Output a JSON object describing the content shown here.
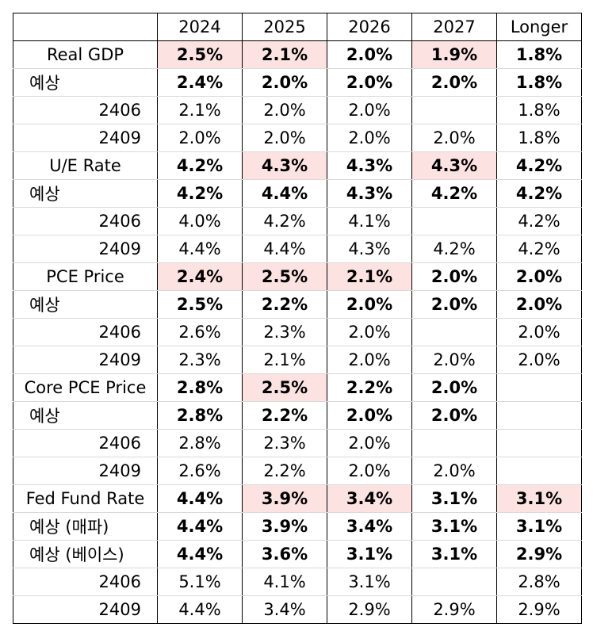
{
  "header": [
    "",
    "2024",
    "2025",
    "2026",
    "2027",
    "Longer"
  ],
  "groups": [
    {
      "rows": [
        {
          "label": "Real GDP",
          "kind": "main",
          "bold": true,
          "cells": [
            "2.5%",
            "2.1%",
            "2.0%",
            "1.9%",
            "1.8%"
          ],
          "highlight": [
            true,
            true,
            false,
            true,
            false
          ]
        },
        {
          "label": "예상",
          "kind": "sub",
          "bold": true,
          "cells": [
            "2.4%",
            "2.0%",
            "2.0%",
            "2.0%",
            "1.8%"
          ],
          "highlight": [
            false,
            false,
            false,
            false,
            false
          ]
        },
        {
          "label": "2406",
          "kind": "vint",
          "bold": false,
          "cells": [
            "2.1%",
            "2.0%",
            "2.0%",
            "",
            "1.8%"
          ],
          "highlight": [
            false,
            false,
            false,
            false,
            false
          ]
        },
        {
          "label": "2409",
          "kind": "vint",
          "bold": false,
          "cells": [
            "2.0%",
            "2.0%",
            "2.0%",
            "2.0%",
            "1.8%"
          ],
          "highlight": [
            false,
            false,
            false,
            false,
            false
          ]
        }
      ]
    },
    {
      "rows": [
        {
          "label": "U/E Rate",
          "kind": "main",
          "bold": true,
          "cells": [
            "4.2%",
            "4.3%",
            "4.3%",
            "4.3%",
            "4.2%"
          ],
          "highlight": [
            false,
            true,
            false,
            true,
            false
          ]
        },
        {
          "label": "예상",
          "kind": "sub",
          "bold": true,
          "cells": [
            "4.2%",
            "4.4%",
            "4.3%",
            "4.2%",
            "4.2%"
          ],
          "highlight": [
            false,
            false,
            false,
            false,
            false
          ]
        },
        {
          "label": "2406",
          "kind": "vint",
          "bold": false,
          "cells": [
            "4.0%",
            "4.2%",
            "4.1%",
            "",
            "4.2%"
          ],
          "highlight": [
            false,
            false,
            false,
            false,
            false
          ]
        },
        {
          "label": "2409",
          "kind": "vint",
          "bold": false,
          "cells": [
            "4.4%",
            "4.4%",
            "4.3%",
            "4.2%",
            "4.2%"
          ],
          "highlight": [
            false,
            false,
            false,
            false,
            false
          ]
        }
      ]
    },
    {
      "rows": [
        {
          "label": "PCE Price",
          "kind": "main",
          "bold": true,
          "cells": [
            "2.4%",
            "2.5%",
            "2.1%",
            "2.0%",
            "2.0%"
          ],
          "highlight": [
            true,
            true,
            true,
            false,
            false
          ]
        },
        {
          "label": "예상",
          "kind": "sub",
          "bold": true,
          "cells": [
            "2.5%",
            "2.2%",
            "2.0%",
            "2.0%",
            "2.0%"
          ],
          "highlight": [
            false,
            false,
            false,
            false,
            false
          ]
        },
        {
          "label": "2406",
          "kind": "vint",
          "bold": false,
          "cells": [
            "2.6%",
            "2.3%",
            "2.0%",
            "",
            "2.0%"
          ],
          "highlight": [
            false,
            false,
            false,
            false,
            false
          ]
        },
        {
          "label": "2409",
          "kind": "vint",
          "bold": false,
          "cells": [
            "2.3%",
            "2.1%",
            "2.0%",
            "2.0%",
            "2.0%"
          ],
          "highlight": [
            false,
            false,
            false,
            false,
            false
          ]
        }
      ]
    },
    {
      "rows": [
        {
          "label": "Core PCE Price",
          "kind": "main",
          "bold": true,
          "cells": [
            "2.8%",
            "2.5%",
            "2.2%",
            "2.0%",
            ""
          ],
          "highlight": [
            false,
            true,
            false,
            false,
            false
          ]
        },
        {
          "label": "예상",
          "kind": "sub",
          "bold": true,
          "cells": [
            "2.8%",
            "2.2%",
            "2.0%",
            "2.0%",
            ""
          ],
          "highlight": [
            false,
            false,
            false,
            false,
            false
          ]
        },
        {
          "label": "2406",
          "kind": "vint",
          "bold": false,
          "cells": [
            "2.8%",
            "2.3%",
            "2.0%",
            "",
            ""
          ],
          "highlight": [
            false,
            false,
            false,
            false,
            false
          ]
        },
        {
          "label": "2409",
          "kind": "vint",
          "bold": false,
          "cells": [
            "2.6%",
            "2.2%",
            "2.0%",
            "2.0%",
            ""
          ],
          "highlight": [
            false,
            false,
            false,
            false,
            false
          ]
        }
      ]
    },
    {
      "rows": [
        {
          "label": "Fed Fund Rate",
          "kind": "main",
          "bold": true,
          "cells": [
            "4.4%",
            "3.9%",
            "3.4%",
            "3.1%",
            "3.1%"
          ],
          "highlight": [
            false,
            true,
            true,
            false,
            true
          ]
        },
        {
          "label": "예상 (매파)",
          "kind": "sub",
          "bold": true,
          "cells": [
            "4.4%",
            "3.9%",
            "3.4%",
            "3.1%",
            "3.1%"
          ],
          "highlight": [
            false,
            false,
            false,
            false,
            false
          ]
        },
        {
          "label": "예상 (베이스)",
          "kind": "sub",
          "bold": true,
          "cells": [
            "4.4%",
            "3.6%",
            "3.1%",
            "3.1%",
            "2.9%"
          ],
          "highlight": [
            false,
            false,
            false,
            false,
            false
          ]
        },
        {
          "label": "2406",
          "kind": "vint",
          "bold": false,
          "cells": [
            "5.1%",
            "4.1%",
            "3.1%",
            "",
            "2.8%"
          ],
          "highlight": [
            false,
            false,
            false,
            false,
            false
          ]
        },
        {
          "label": "2409",
          "kind": "vint",
          "bold": false,
          "cells": [
            "4.4%",
            "3.4%",
            "2.9%",
            "2.9%",
            "2.9%"
          ],
          "highlight": [
            false,
            false,
            false,
            false,
            false
          ]
        }
      ]
    }
  ]
}
